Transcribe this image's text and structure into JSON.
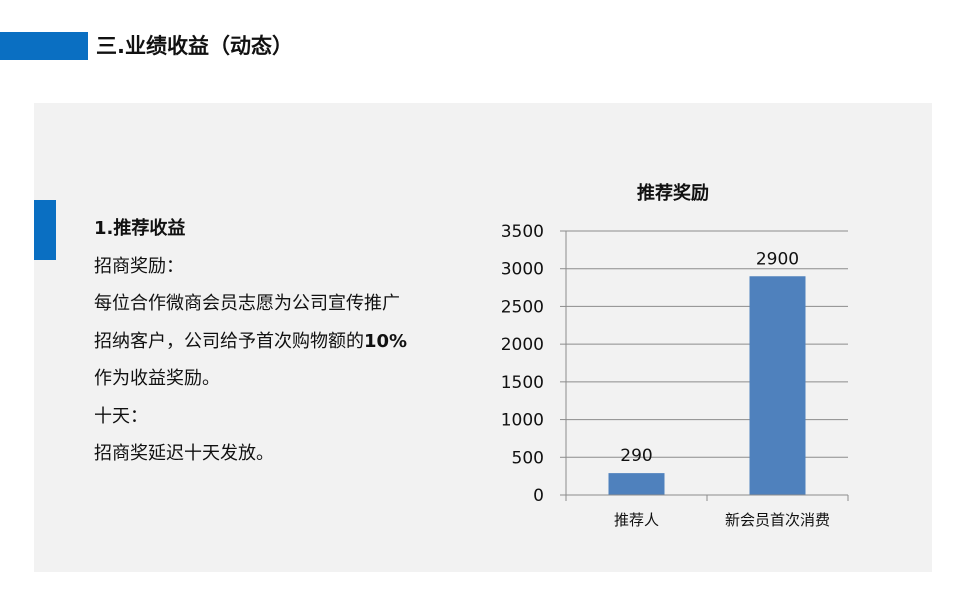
{
  "header": {
    "title": "三.业绩收益（动态）"
  },
  "section": {
    "heading": "1.推荐收益",
    "lines": [
      {
        "text": "招商奖励："
      },
      {
        "text": "每位合作微商会员志愿为公司宣传推广"
      },
      {
        "text": "招纳客户，公司给予首次购物额的",
        "bold": "10%"
      },
      {
        "text": "作为收益奖励。"
      },
      {
        "text": "十天："
      },
      {
        "text": "招商奖延迟十天发放。"
      }
    ]
  },
  "chart_data": {
    "type": "bar",
    "title": "推荐奖励",
    "categories": [
      "推荐人",
      "新会员首次消费"
    ],
    "values": [
      290,
      2900
    ],
    "data_labels": [
      "290",
      "2900"
    ],
    "ylim": [
      0,
      3500
    ],
    "yticks": [
      0,
      500,
      1000,
      1500,
      2000,
      2500,
      3000,
      3500
    ],
    "grid": true,
    "legend": "none",
    "bar_color": "#4f81bd"
  }
}
